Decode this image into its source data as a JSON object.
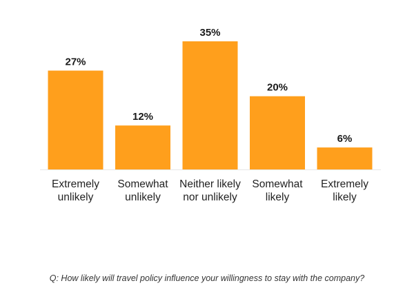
{
  "chart_data": {
    "type": "bar",
    "categories": [
      [
        "Extremely",
        "unlikely"
      ],
      [
        "Somewhat",
        "unlikely"
      ],
      [
        "Neither likely",
        "nor unlikely"
      ],
      [
        "Somewhat",
        "likely"
      ],
      [
        "Extremely",
        "likely"
      ]
    ],
    "values": [
      27,
      12,
      35,
      20,
      6
    ],
    "value_labels": [
      "27%",
      "12%",
      "35%",
      "20%",
      "6%"
    ],
    "ylim": [
      0,
      35
    ],
    "grid": false,
    "bar_color": "#FF9F1C"
  },
  "question": "Q: How likely will travel policy influence your willingness to stay with the company?"
}
